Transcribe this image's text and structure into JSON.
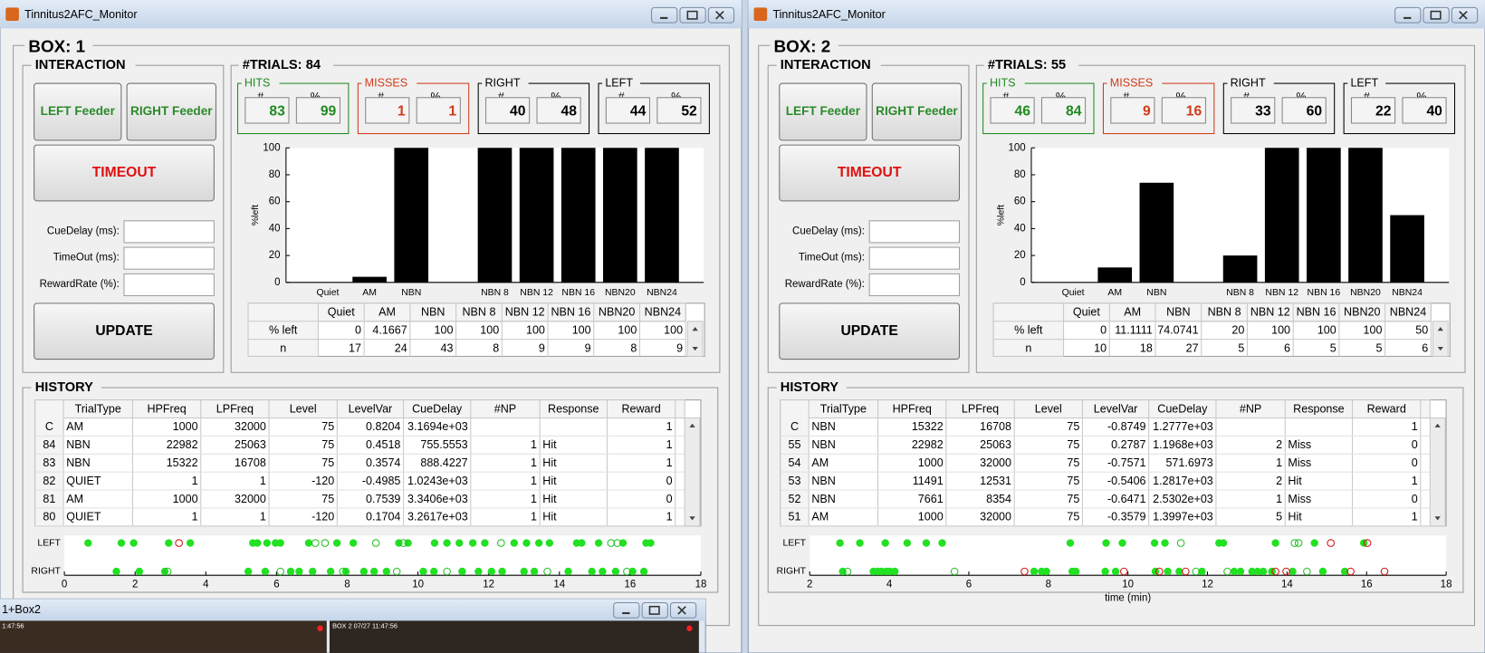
{
  "windows": [
    {
      "title": "Tinnitus2AFC_Monitor",
      "box": {
        "label": "BOX:",
        "number": 1
      },
      "interaction": {
        "title": "INTERACTION",
        "buttons": [
          "LEFT Feeder",
          "RIGHT Feeder",
          "TIMEOUT",
          "UPDATE"
        ],
        "fields": [
          "CueDelay (ms):",
          "TimeOut (ms):",
          "RewardRate (%):"
        ]
      },
      "trials": {
        "label": "#TRIALS:",
        "count": 84
      },
      "stats": [
        {
          "name": "HITS",
          "color": "#1f8a1f",
          "count": 83,
          "pct": 99
        },
        {
          "name": "MISSES",
          "color": "#d03a1a",
          "count": 1,
          "pct": 1
        },
        {
          "name": "RIGHT",
          "color": "#000000",
          "count": 40,
          "pct": 48
        },
        {
          "name": "LEFT",
          "color": "#000000",
          "count": 44,
          "pct": 52
        }
      ],
      "chart": {
        "type": "bar",
        "ylabel": "%left",
        "color": "#000000",
        "categories": [
          "Quiet",
          "AM",
          "NBN",
          null,
          "NBN 8",
          "NBN 12",
          "NBN 16",
          "NBN20",
          "NBN24"
        ],
        "values": [
          0,
          4.1667,
          100,
          null,
          100,
          100,
          100,
          100,
          100
        ],
        "ylim": [
          0,
          100
        ],
        "yticks": [
          0,
          20,
          40,
          60,
          80,
          100
        ]
      },
      "summary_table": {
        "columns": [
          "Quiet",
          "AM",
          "NBN",
          "NBN 8",
          "NBN 12",
          "NBN 16",
          "NBN20",
          "NBN24"
        ],
        "rows": [
          {
            "label": "% left",
            "values": [
              0,
              4.1667,
              100,
              100,
              100,
              100,
              100,
              100
            ]
          },
          {
            "label": "n",
            "values": [
              17,
              24,
              43,
              8,
              9,
              9,
              8,
              9
            ]
          }
        ]
      },
      "history": {
        "title": "HISTORY",
        "columns": [
          "TrialType",
          "HPFreq",
          "LPFreq",
          "Level",
          "LevelVar",
          "CueDelay",
          "#NP",
          "Response",
          "Reward"
        ],
        "rows": [
          {
            "id": "C",
            "cells": [
              "AM",
              1000,
              32000,
              75,
              0.8204,
              "3.1694e+03",
              null,
              null,
              1
            ]
          },
          {
            "id": 84,
            "cells": [
              "NBN",
              22982,
              25063,
              75,
              0.4518,
              755.5553,
              1,
              "Hit",
              1
            ]
          },
          {
            "id": 83,
            "cells": [
              "NBN",
              15322,
              16708,
              75,
              0.3574,
              888.4227,
              1,
              "Hit",
              1
            ]
          },
          {
            "id": 82,
            "cells": [
              "QUIET",
              1,
              1,
              -120,
              -0.4985,
              "1.0243e+03",
              1,
              "Hit",
              0
            ]
          },
          {
            "id": 81,
            "cells": [
              "AM",
              1000,
              32000,
              75,
              0.7539,
              "3.3406e+03",
              1,
              "Hit",
              0
            ]
          },
          {
            "id": 80,
            "cells": [
              "QUIET",
              1,
              1,
              -120,
              0.1704,
              "3.2617e+03",
              1,
              "Hit",
              1
            ]
          }
        ]
      },
      "timeline": {
        "xlim": [
          0,
          18
        ],
        "xticks": [
          0,
          2,
          4,
          6,
          8,
          10,
          12,
          14,
          16,
          18
        ],
        "rows": [
          {
            "label": "LEFT",
            "hits": [
              0.67,
              1.61,
              1.96,
              2.95,
              3.56,
              5.33,
              5.46,
              5.73,
              5.97,
              6.11,
              6.91,
              7.71,
              8.17,
              9.46,
              9.72,
              10.47,
              10.82,
              11.17,
              11.55,
              11.89,
              12.72,
              13.07,
              13.42,
              13.72,
              14.49,
              14.63,
              15.11,
              15.8,
              16.45,
              16.58
            ],
            "open": [
              7.1,
              7.37,
              8.81,
              9.59,
              12.35,
              15.46,
              15.64
            ],
            "misses": [
              3.24
            ]
          },
          {
            "label": "RIGHT",
            "hits": [
              1.47,
              2.12,
              2.84,
              5.2,
              5.68,
              6.4,
              6.64,
              7.02,
              7.53,
              7.96,
              8.47,
              8.76,
              9.11,
              10.15,
              10.45,
              11.25,
              11.71,
              12.08,
              12.38,
              13.0,
              13.29,
              14.25,
              14.92,
              15.22,
              15.59,
              16.07,
              16.39
            ],
            "open": [
              2.92,
              6.11,
              7.88,
              9.4,
              10.82,
              13.66,
              15.91
            ],
            "misses": []
          }
        ]
      }
    },
    {
      "title": "Tinnitus2AFC_Monitor",
      "box": {
        "label": "BOX:",
        "number": 2
      },
      "interaction": {
        "title": "INTERACTION",
        "buttons": [
          "LEFT Feeder",
          "RIGHT Feeder",
          "TIMEOUT",
          "UPDATE"
        ],
        "fields": [
          "CueDelay (ms):",
          "TimeOut (ms):",
          "RewardRate (%):"
        ]
      },
      "trials": {
        "label": "#TRIALS:",
        "count": 55
      },
      "stats": [
        {
          "name": "HITS",
          "color": "#1f8a1f",
          "count": 46,
          "pct": 84
        },
        {
          "name": "MISSES",
          "color": "#d03a1a",
          "count": 9,
          "pct": 16
        },
        {
          "name": "RIGHT",
          "color": "#000000",
          "count": 33,
          "pct": 60
        },
        {
          "name": "LEFT",
          "color": "#000000",
          "count": 22,
          "pct": 40
        }
      ],
      "chart": {
        "type": "bar",
        "ylabel": "%left",
        "color": "#000000",
        "categories": [
          "Quiet",
          "AM",
          "NBN",
          null,
          "NBN 8",
          "NBN 12",
          "NBN 16",
          "NBN20",
          "NBN24"
        ],
        "values": [
          0,
          11.1111,
          74.0741,
          null,
          20,
          100,
          100,
          100,
          50
        ],
        "ylim": [
          0,
          100
        ],
        "yticks": [
          0,
          20,
          40,
          60,
          80,
          100
        ]
      },
      "summary_table": {
        "columns": [
          "Quiet",
          "AM",
          "NBN",
          "NBN 8",
          "NBN 12",
          "NBN 16",
          "NBN20",
          "NBN24"
        ],
        "rows": [
          {
            "label": "% left",
            "values": [
              0,
              11.1111,
              74.0741,
              20,
              100,
              100,
              100,
              50
            ]
          },
          {
            "label": "n",
            "values": [
              10,
              18,
              27,
              5,
              6,
              5,
              5,
              6
            ]
          }
        ]
      },
      "history": {
        "title": "HISTORY",
        "columns": [
          "TrialType",
          "HPFreq",
          "LPFreq",
          "Level",
          "LevelVar",
          "CueDelay",
          "#NP",
          "Response",
          "Reward"
        ],
        "rows": [
          {
            "id": "C",
            "cells": [
              "NBN",
              15322,
              16708,
              75,
              -0.8749,
              "1.2777e+03",
              null,
              null,
              1
            ]
          },
          {
            "id": 55,
            "cells": [
              "NBN",
              22982,
              25063,
              75,
              0.2787,
              "1.1968e+03",
              2,
              "Miss",
              0
            ]
          },
          {
            "id": 54,
            "cells": [
              "AM",
              1000,
              32000,
              75,
              -0.7571,
              571.6973,
              1,
              "Miss",
              0
            ]
          },
          {
            "id": 53,
            "cells": [
              "NBN",
              11491,
              12531,
              75,
              -0.5406,
              "1.2817e+03",
              2,
              "Hit",
              1
            ]
          },
          {
            "id": 52,
            "cells": [
              "NBN",
              7661,
              8354,
              75,
              -0.6471,
              "2.5302e+03",
              1,
              "Miss",
              0
            ]
          },
          {
            "id": 51,
            "cells": [
              "AM",
              1000,
              32000,
              75,
              -0.3579,
              "1.3997e+03",
              5,
              "Hit",
              1
            ]
          }
        ]
      },
      "timeline": {
        "xlim": [
          2,
          18
        ],
        "xticks": [
          2,
          4,
          6,
          8,
          10,
          12,
          14,
          16,
          18
        ],
        "xlabel": "time (min)",
        "rows": [
          {
            "label": "LEFT",
            "hits": [
              2.76,
              3.26,
              3.9,
              4.45,
              4.93,
              5.33,
              8.55,
              9.45,
              9.86,
              10.67,
              10.93,
              12.29,
              12.4,
              13.71,
              14.69,
              15.93
            ],
            "open": [
              11.33,
              14.19,
              14.29
            ],
            "misses": [
              15.1,
              16.02
            ]
          },
          {
            "label": "RIGHT",
            "hits": [
              2.83,
              3.6,
              3.71,
              3.81,
              3.93,
              4.02,
              4.14,
              7.64,
              7.83,
              7.95,
              8.6,
              8.69,
              9.43,
              9.69,
              10.69,
              11.0,
              11.29,
              11.86,
              12.67,
              12.83,
              13.12,
              13.26,
              13.4,
              13.62,
              14.14,
              14.9,
              15.45
            ],
            "open": [
              2.95,
              5.64,
              11.71,
              12.5,
              14.5
            ],
            "misses": [
              7.4,
              9.9,
              10.79,
              11.45,
              13.71,
              13.98,
              15.6,
              16.45
            ]
          }
        ]
      }
    }
  ],
  "stat_headers": [
    "#",
    "%"
  ],
  "video_window": {
    "title": "1+Box2",
    "captions": [
      "1:47:56",
      "BOX 2 07/27 11:47:56"
    ]
  }
}
